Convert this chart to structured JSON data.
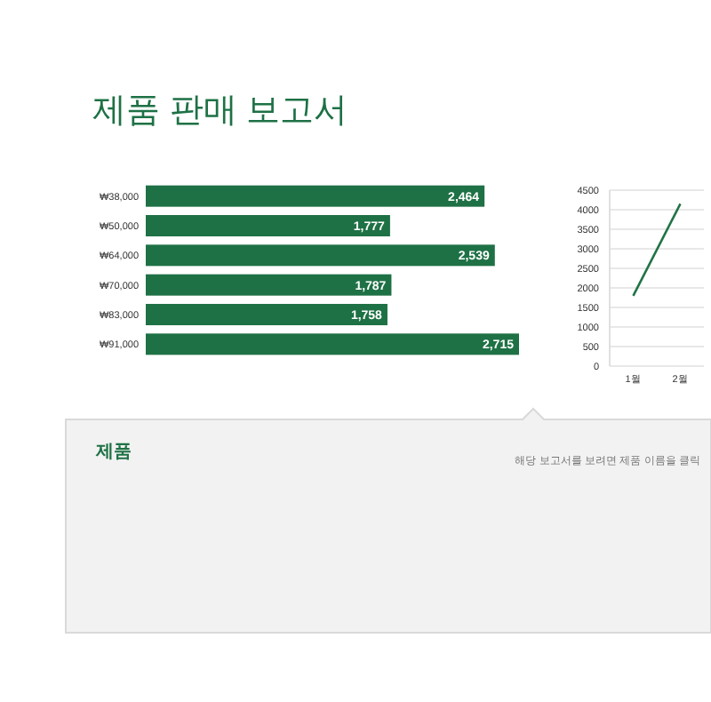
{
  "chart_data": [
    {
      "type": "bar",
      "orientation": "horizontal",
      "title": "제품 판매 보고서",
      "categories": [
        "₩38,000",
        "₩50,000",
        "₩64,000",
        "₩70,000",
        "₩83,000",
        "₩91,000"
      ],
      "values": [
        2464,
        1777,
        2539,
        1787,
        1758,
        2715
      ],
      "value_labels": [
        "2,464",
        "1,777",
        "2,539",
        "1,787",
        "1,758",
        "2,715"
      ],
      "color": "#1e7145"
    },
    {
      "type": "line",
      "categories": [
        "1월",
        "2월"
      ],
      "series": [
        {
          "color": "#217346",
          "values": [
            1800,
            4150
          ]
        }
      ],
      "ylim": [
        0,
        4500
      ],
      "yticks": [
        0,
        500,
        1000,
        1500,
        2000,
        2500,
        3000,
        3500,
        4000,
        4500
      ],
      "grid": "y"
    },
    {
      "type": "other",
      "title": "제품",
      "annotations": [
        "해당 보고서를 보려면 제품 이름을 클릭"
      ]
    }
  ]
}
